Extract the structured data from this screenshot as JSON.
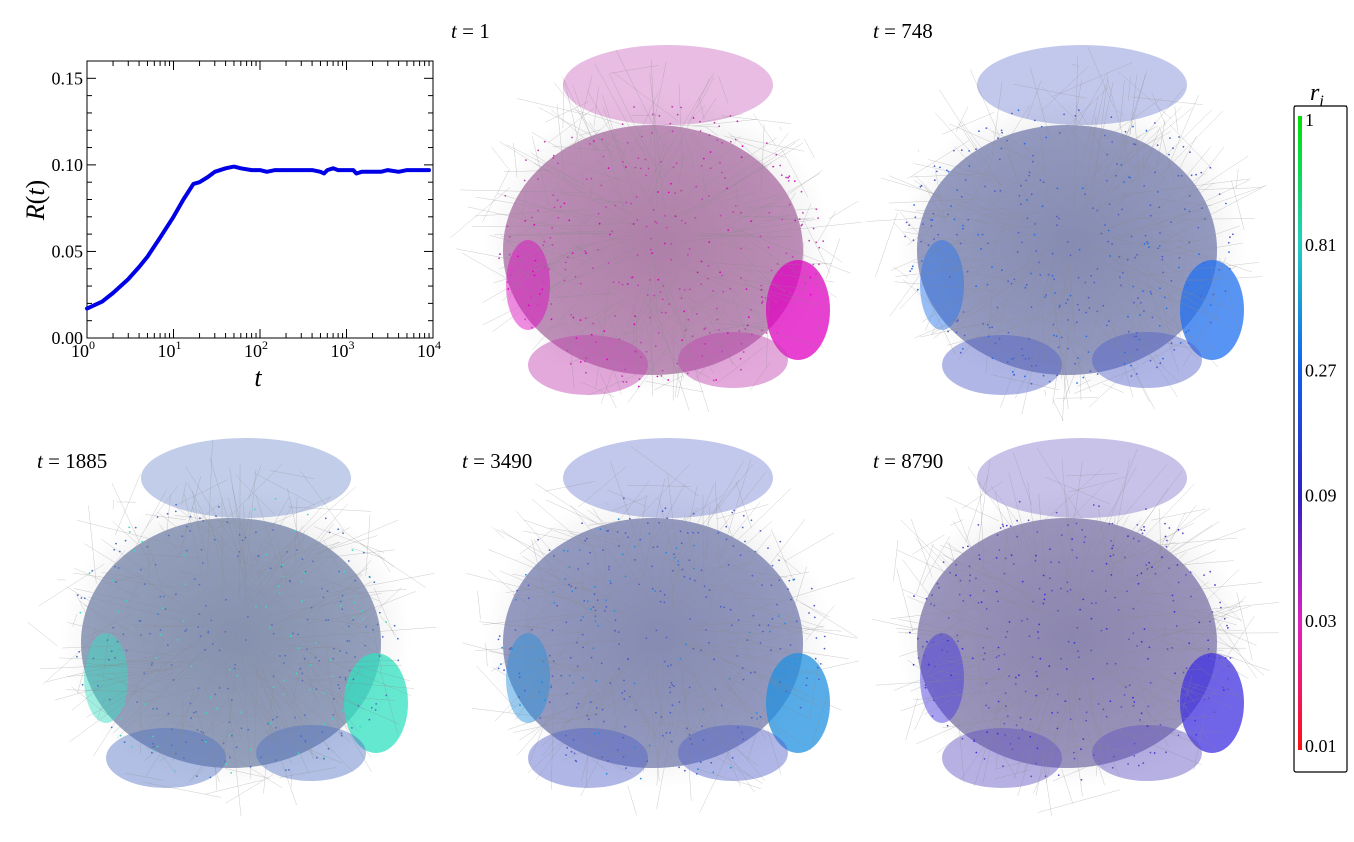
{
  "chart_data": [
    {
      "type": "line",
      "xlabel": "t",
      "ylabel": "R(t)",
      "xscale": "log",
      "xlim": [
        1,
        10000
      ],
      "ylim": [
        0.0,
        0.16
      ],
      "xticks": [
        "10",
        "10",
        "10",
        "10",
        "10"
      ],
      "xtick_exponents": [
        "0",
        "1",
        "2",
        "3",
        "4"
      ],
      "yticks": [
        "0.00",
        "0.05",
        "0.10",
        "0.15"
      ],
      "ytick_values": [
        0.0,
        0.05,
        0.1,
        0.15
      ],
      "line_color": "#0000e6",
      "series": [
        {
          "x": [
            1,
            1.5,
            2,
            3,
            4,
            5,
            7,
            10,
            13,
            17,
            20,
            25,
            30,
            40,
            50,
            60,
            80,
            100,
            120,
            150,
            200,
            250,
            300,
            400,
            500,
            550,
            600,
            700,
            800,
            1000,
            1200,
            1300,
            1500,
            2000,
            2500,
            3000,
            4000,
            5000,
            6000,
            7000,
            8000,
            9000
          ],
          "y": [
            0.017,
            0.021,
            0.026,
            0.034,
            0.041,
            0.047,
            0.058,
            0.07,
            0.08,
            0.089,
            0.09,
            0.093,
            0.096,
            0.098,
            0.099,
            0.098,
            0.097,
            0.097,
            0.096,
            0.097,
            0.097,
            0.097,
            0.097,
            0.097,
            0.096,
            0.095,
            0.097,
            0.098,
            0.097,
            0.097,
            0.097,
            0.095,
            0.096,
            0.096,
            0.096,
            0.097,
            0.096,
            0.097,
            0.097,
            0.097,
            0.097,
            0.097
          ]
        }
      ]
    },
    {
      "type": "network",
      "panels": [
        {
          "label_var": "t",
          "label_eq": " = ",
          "label_val": "1",
          "dominant_color": "#c040b0",
          "accent_color": "#e000c0"
        },
        {
          "label_var": "t",
          "label_eq": " = ",
          "label_val": "748",
          "dominant_color": "#5060c8",
          "accent_color": "#2070f0"
        },
        {
          "label_var": "t",
          "label_eq": " = ",
          "label_val": "1885",
          "dominant_color": "#5070c0",
          "accent_color": "#30e0c0"
        },
        {
          "label_var": "t",
          "label_eq": " = ",
          "label_val": "3490",
          "dominant_color": "#5060c8",
          "accent_color": "#2090e0"
        },
        {
          "label_var": "t",
          "label_eq": " = ",
          "label_val": "8790",
          "dominant_color": "#6050c0",
          "accent_color": "#4030e0"
        }
      ],
      "edge_color": "#8a8a8a"
    },
    {
      "type": "colorbar",
      "title_var": "r",
      "title_sub": "i",
      "ticks": [
        "1",
        "0.81",
        "0.27",
        "0.09",
        "0.03",
        "0.01"
      ],
      "colors": [
        "#00e000",
        "#20d0c0",
        "#1060f0",
        "#3020c0",
        "#e020c0",
        "#ff1010"
      ]
    }
  ]
}
